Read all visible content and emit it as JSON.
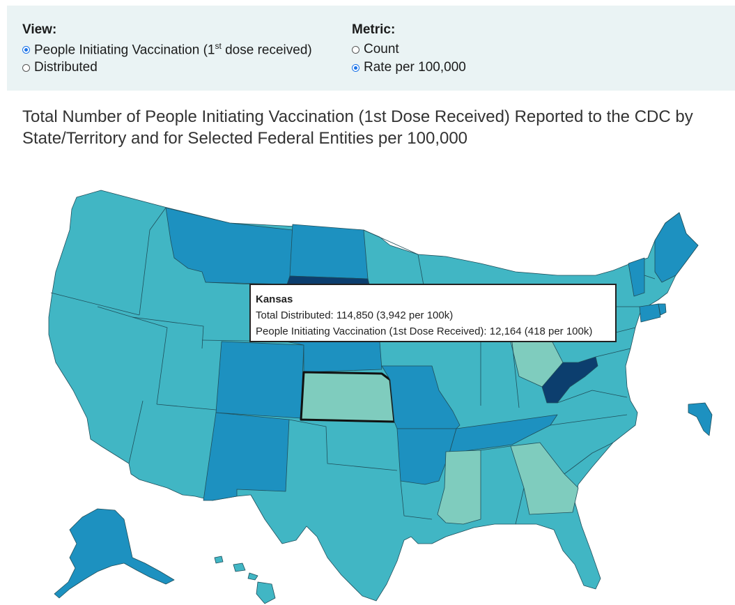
{
  "view": {
    "label": "View:",
    "options": [
      {
        "text_a": "People Initiating Vaccination (1",
        "sup": "st",
        "text_b": " dose received)",
        "checked": true
      },
      {
        "text": "Distributed",
        "checked": false
      }
    ]
  },
  "metric": {
    "label": "Metric:",
    "options": [
      {
        "text": "Count",
        "checked": false
      },
      {
        "text": "Rate per 100,000",
        "checked": true
      }
    ]
  },
  "map": {
    "title": "Total Number of People Initiating Vaccination (1st Dose Received) Reported to the CDC by State/Territory and for Selected Federal Entities per 100,000",
    "highlighted_state": "Kansas",
    "legend_colors": {
      "lowest": "#7fccbe",
      "middle": "#41b6c4",
      "high": "#1d91c0",
      "highest": "#0c3e6e"
    },
    "state_classes": {
      "lowest": [
        "Kansas",
        "Ohio",
        "Mississippi",
        "Georgia"
      ],
      "high": [
        "Montana",
        "North Dakota",
        "Colorado",
        "New Mexico",
        "Nebraska",
        "Missouri",
        "Arkansas",
        "Tennessee",
        "Alaska",
        "Maine",
        "Vermont",
        "Connecticut",
        "Rhode Island"
      ],
      "highest": [
        "South Dakota",
        "West Virginia"
      ]
    }
  },
  "tooltip": {
    "state": "Kansas",
    "line1": "Total Distributed: 114,850 (3,942 per 100k)",
    "line2": "People Initiating Vaccination (1st Dose Received): 12,164 (418 per 100k)"
  }
}
